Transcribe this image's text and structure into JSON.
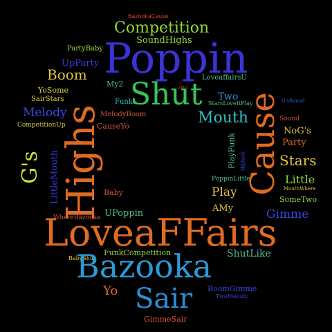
{
  "words": [
    {
      "text": "BazookaCause",
      "color": "#d43f33"
    },
    {
      "text": "Competition",
      "color": "#8fd93a"
    },
    {
      "text": "PartyBaby",
      "color": "#9ad63e"
    },
    {
      "text": "SoundHighs",
      "color": "#9ad63e"
    },
    {
      "text": "Poppin",
      "color": "#3a33d6"
    },
    {
      "text": "UpParty",
      "color": "#3a3ae0"
    },
    {
      "text": "Boom",
      "color": "#e3c43e"
    },
    {
      "text": "My2",
      "color": "#52c089"
    },
    {
      "text": "LoveaffairsU",
      "color": "#52c089"
    },
    {
      "text": "Shut",
      "color": "#38c35a"
    },
    {
      "text": "2No",
      "color": "#c73a2a"
    },
    {
      "text": "YoSome",
      "color": "#d6d030"
    },
    {
      "text": "Two",
      "color": "#2c8fd6"
    },
    {
      "text": "SairStars",
      "color": "#d6d030"
    },
    {
      "text": "Funk",
      "color": "#2ec0c0"
    },
    {
      "text": "StarsLoveItPlay",
      "color": "#52c089"
    },
    {
      "text": "G'sSound",
      "color": "#2c6ed6"
    },
    {
      "text": "Melody",
      "color": "#3c47e0"
    },
    {
      "text": "MelodyBoom",
      "color": "#d4533c"
    },
    {
      "text": "Mouth",
      "color": "#2ec0c0"
    },
    {
      "text": "Sound",
      "color": "#d4533c"
    },
    {
      "text": "CompetitionUp",
      "color": "#d6d030"
    },
    {
      "text": "CauseYo",
      "color": "#d4533c"
    },
    {
      "text": "NoG's",
      "color": "#e3c43e"
    },
    {
      "text": "Party",
      "color": "#e06b23"
    },
    {
      "text": "Stars",
      "color": "#e3c43e"
    },
    {
      "text": "Little",
      "color": "#8fd93a"
    },
    {
      "text": "MouthWhere",
      "color": "#e3c43e"
    },
    {
      "text": "SomeTwo",
      "color": "#9ad63e"
    },
    {
      "text": "PoppinLittle",
      "color": "#52c089"
    },
    {
      "text": "Play",
      "color": "#e3c43e"
    },
    {
      "text": "Baby",
      "color": "#d4533c"
    },
    {
      "text": "UPoppin",
      "color": "#52c089"
    },
    {
      "text": "AMy",
      "color": "#e3c43e"
    },
    {
      "text": "Gimme",
      "color": "#3c47e0"
    },
    {
      "text": "WhereBazooka",
      "color": "#d4533c"
    },
    {
      "text": "LoveaFFairs",
      "color": "#e06b23"
    },
    {
      "text": "FunkCompetition",
      "color": "#9ad63e"
    },
    {
      "text": "ShutLike",
      "color": "#52c089"
    },
    {
      "text": "BabyShut",
      "color": "#e3c43e"
    },
    {
      "text": "Bazooka",
      "color": "#2c9ad6"
    },
    {
      "text": "Yo",
      "color": "#e06b23"
    },
    {
      "text": "BoomGimme",
      "color": "#3c47e0"
    },
    {
      "text": "TwoMelody",
      "color": "#3c47e0"
    },
    {
      "text": "Sair",
      "color": "#2c8fd6"
    },
    {
      "text": "GimmeSair",
      "color": "#d4533c"
    },
    {
      "text": "G's",
      "color": "#d6e030"
    },
    {
      "text": "Highs",
      "color": "#e06b23"
    },
    {
      "text": "LittleMouth",
      "color": "#3a3ae0"
    },
    {
      "text": "Cause",
      "color": "#e06b23"
    },
    {
      "text": "PlayFunk",
      "color": "#52c089"
    },
    {
      "text": "HighsAl",
      "color": "#3c47e0"
    }
  ]
}
